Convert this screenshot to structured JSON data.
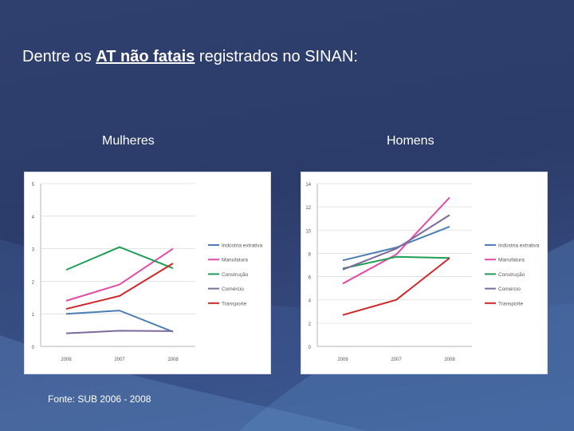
{
  "title": {
    "prefix": "Dentre os ",
    "emphasis": "AT não fatais",
    "suffix": " registrados no SINAN:"
  },
  "source": "Fonte: SUB 2006 - 2008",
  "colors": {
    "Indústria extrativa": "#4a7eb5",
    "Manufatura": "#e24ba6",
    "Construção": "#1e9e56",
    "Comércio": "#7d6a9c",
    "Transporte": "#d02828"
  },
  "chart_data": [
    {
      "type": "line",
      "title": "Mulheres",
      "x": [
        "2006",
        "2007",
        "2008"
      ],
      "ylim": [
        0,
        5
      ],
      "yticks": [
        "0",
        "1",
        "2",
        "3",
        "4",
        "5"
      ],
      "series": [
        {
          "name": "Indústria extrativa",
          "values": [
            1.0,
            1.1,
            0.45
          ]
        },
        {
          "name": "Manufatura",
          "values": [
            1.4,
            1.9,
            3.0
          ]
        },
        {
          "name": "Construção",
          "values": [
            2.35,
            3.05,
            2.4
          ]
        },
        {
          "name": "Comércio",
          "values": [
            0.4,
            0.48,
            0.47
          ]
        },
        {
          "name": "Transporte",
          "values": [
            1.15,
            1.55,
            2.55
          ]
        }
      ],
      "legend": "right"
    },
    {
      "type": "line",
      "title": "Homens",
      "x": [
        "2006",
        "2007",
        "2008"
      ],
      "ylim": [
        0,
        14
      ],
      "yticks": [
        "0",
        "2",
        "4",
        "6",
        "8",
        "10",
        "12",
        "14"
      ],
      "series": [
        {
          "name": "Indústria extrativa",
          "values": [
            7.4,
            8.5,
            10.3
          ]
        },
        {
          "name": "Manufatura",
          "values": [
            5.4,
            7.9,
            12.8
          ]
        },
        {
          "name": "Construção",
          "values": [
            6.7,
            7.7,
            7.6
          ]
        },
        {
          "name": "Comércio",
          "values": [
            6.6,
            8.4,
            11.3
          ]
        },
        {
          "name": "Transporte",
          "values": [
            2.7,
            4.0,
            7.6
          ]
        }
      ],
      "legend": "right"
    }
  ]
}
